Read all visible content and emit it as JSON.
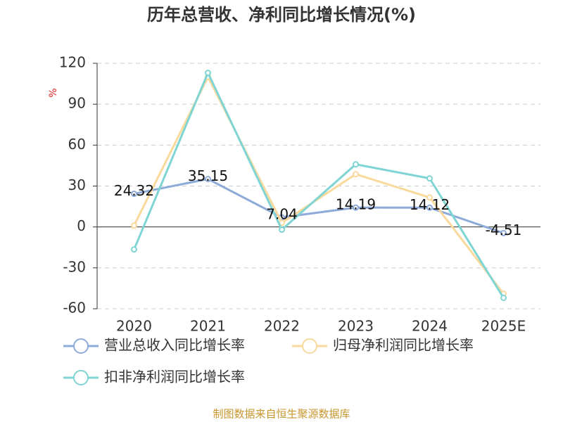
{
  "chart_data": {
    "type": "line",
    "title": "历年总营收、净利同比增长情况(%)",
    "y_label": "%",
    "source": "制图数据来自恒生聚源数据库",
    "categories": [
      "2020",
      "2021",
      "2022",
      "2023",
      "2024",
      "2025E"
    ],
    "series": [
      {
        "name": "营业总收入同比增长率",
        "color": "#8eaad8",
        "values": [
          24.32,
          35.15,
          7.04,
          14.19,
          14.12,
          -4.51
        ],
        "show_labels": true
      },
      {
        "name": "归母净利润同比增长率",
        "color": "#fad99c",
        "values": [
          1,
          110,
          3,
          38.7,
          21.6,
          -49
        ],
        "show_labels": false
      },
      {
        "name": "扣非净利润同比增长率",
        "color": "#7fd4d4",
        "values": [
          -16.5,
          113,
          -2,
          45.9,
          35.6,
          -52
        ],
        "show_labels": false
      }
    ],
    "ylim": [
      -60,
      120
    ],
    "yticks": [
      -60,
      -30,
      0,
      30,
      60,
      90,
      120
    ],
    "grid": true
  }
}
